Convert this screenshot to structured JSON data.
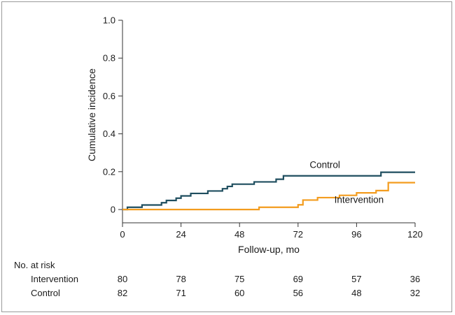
{
  "chart_data": {
    "type": "line",
    "title": "",
    "xlabel": "Follow-up, mo",
    "ylabel": "Cumulative incidence",
    "xlim": [
      0,
      120
    ],
    "ylim": [
      0,
      1.0
    ],
    "x_ticks": [
      "0",
      "24",
      "48",
      "72",
      "96",
      "120"
    ],
    "x_tick_values": [
      0,
      24,
      48,
      72,
      96,
      120
    ],
    "y_ticks": [
      "0",
      "0.2",
      "0.4",
      "0.6",
      "0.8",
      "1.0"
    ],
    "y_tick_values": [
      0,
      0.2,
      0.4,
      0.6,
      0.8,
      1.0
    ],
    "grid": false,
    "series": [
      {
        "name": "Control",
        "color": "#1f4e5f",
        "step": true,
        "x": [
          0,
          2,
          8,
          16,
          18,
          22,
          24,
          28,
          35,
          41,
          43,
          45,
          48,
          54,
          63,
          66,
          106,
          120
        ],
        "y": [
          0,
          0.012,
          0.024,
          0.036,
          0.048,
          0.06,
          0.072,
          0.085,
          0.098,
          0.11,
          0.122,
          0.134,
          0.134,
          0.146,
          0.16,
          0.178,
          0.197,
          0.197
        ]
      },
      {
        "name": "Intervention",
        "color": "#f39c1e",
        "step": true,
        "x": [
          0,
          56,
          72,
          74,
          80,
          89,
          96,
          104,
          109,
          120
        ],
        "y": [
          0,
          0.012,
          0.025,
          0.05,
          0.063,
          0.075,
          0.088,
          0.1,
          0.142,
          0.142
        ]
      }
    ],
    "series_labels": [
      {
        "name": "Control",
        "anchor_x": 83,
        "anchor_y": 0.22
      },
      {
        "name": "Intervention",
        "anchor_x": 97,
        "anchor_y": 0.035
      }
    ],
    "risk_table": {
      "title": "No. at risk",
      "times": [
        0,
        24,
        48,
        72,
        96,
        120
      ],
      "rows": [
        {
          "label": "Intervention",
          "values": [
            "80",
            "78",
            "75",
            "69",
            "57",
            "36"
          ]
        },
        {
          "label": "Control",
          "values": [
            "82",
            "71",
            "60",
            "56",
            "48",
            "32"
          ]
        }
      ]
    }
  }
}
